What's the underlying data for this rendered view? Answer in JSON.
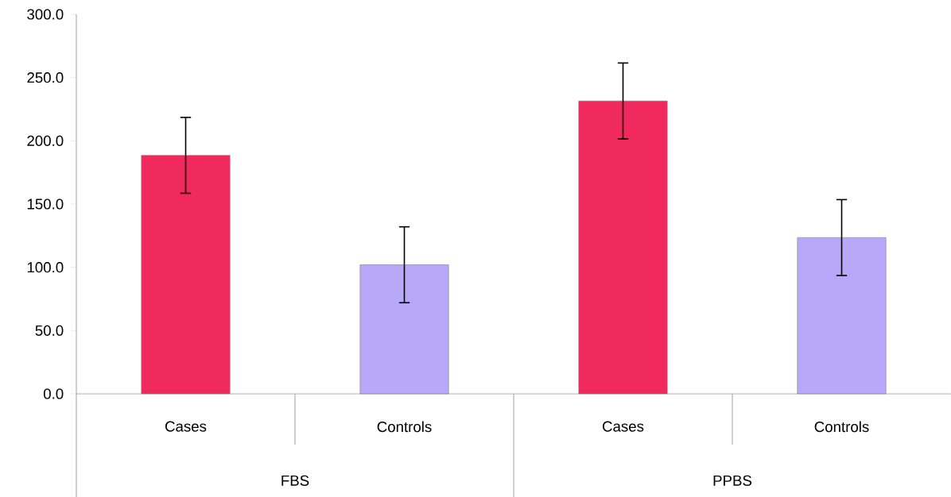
{
  "chart_data": {
    "type": "bar",
    "categories": [
      "Cases",
      "Controls",
      "Cases",
      "Controls"
    ],
    "values": [
      188.5,
      102,
      231.5,
      123.5
    ],
    "errors": [
      30,
      30,
      30,
      30
    ],
    "colors": [
      "#f02a5c",
      "#b8a8fa",
      "#f02a5c",
      "#b8a8fa"
    ],
    "ylim": [
      0,
      300
    ],
    "yticks": [
      {
        "value": 0,
        "label": "0.0"
      },
      {
        "value": 50,
        "label": "50.0"
      },
      {
        "value": 100,
        "label": "100.0"
      },
      {
        "value": 150,
        "label": "150.0"
      },
      {
        "value": 200,
        "label": "200.0"
      },
      {
        "value": 250,
        "label": "250.0"
      },
      {
        "value": 300,
        "label": "300.0"
      }
    ],
    "annotations": [
      "FBS",
      "PPBS"
    ],
    "grid": false
  }
}
